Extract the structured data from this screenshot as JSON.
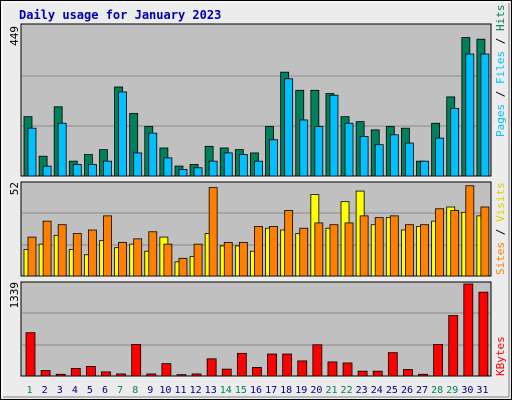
{
  "title": "Daily usage for January 2023",
  "colors": {
    "background": "#ececec",
    "plot_bg": "#c0c0c0",
    "hits": "#00805c",
    "files": "#00c0ff",
    "pages": "#00c0ff",
    "visits": "#ffff00",
    "sites": "#ff8000",
    "kbytes": "#ff0000",
    "title": "#0000b0",
    "weekend_label": "#00805c",
    "weekday_label": "#000080"
  },
  "chart_data": [
    {
      "type": "bar",
      "title": "Daily usage for January 2023",
      "categories": [
        "1",
        "2",
        "3",
        "4",
        "5",
        "6",
        "7",
        "8",
        "9",
        "10",
        "11",
        "12",
        "13",
        "14",
        "15",
        "16",
        "17",
        "18",
        "19",
        "20",
        "21",
        "22",
        "23",
        "24",
        "25",
        "26",
        "27",
        "28",
        "29",
        "30",
        "31"
      ],
      "weekend_days": [
        "1",
        "7",
        "8",
        "14",
        "15",
        "21",
        "22",
        "28",
        "29"
      ],
      "ymax_label": "449",
      "ylim": [
        0,
        449
      ],
      "axis_labels": [
        "Pages",
        "Files",
        "Hits"
      ],
      "series": [
        {
          "name": "Hits",
          "values": [
            180,
            60,
            210,
            45,
            65,
            80,
            270,
            190,
            150,
            85,
            30,
            35,
            90,
            85,
            80,
            70,
            150,
            315,
            260,
            260,
            250,
            180,
            165,
            140,
            150,
            145,
            45,
            160,
            240,
            420,
            415
          ]
        },
        {
          "name": "Files",
          "values": [
            145,
            30,
            160,
            35,
            35,
            45,
            255,
            70,
            130,
            55,
            20,
            25,
            45,
            70,
            65,
            45,
            110,
            295,
            170,
            150,
            245,
            160,
            120,
            95,
            125,
            100,
            45,
            115,
            205,
            370,
            370
          ]
        },
        {
          "name": "Pages",
          "values": [
            145,
            30,
            160,
            35,
            35,
            45,
            255,
            70,
            130,
            55,
            20,
            25,
            45,
            70,
            65,
            45,
            110,
            295,
            170,
            150,
            245,
            160,
            120,
            95,
            125,
            100,
            45,
            115,
            205,
            370,
            370
          ]
        }
      ]
    },
    {
      "type": "bar",
      "categories": [
        "1",
        "2",
        "3",
        "4",
        "5",
        "6",
        "7",
        "8",
        "9",
        "10",
        "11",
        "12",
        "13",
        "14",
        "15",
        "16",
        "17",
        "18",
        "19",
        "20",
        "21",
        "22",
        "23",
        "24",
        "25",
        "26",
        "27",
        "28",
        "29",
        "30",
        "31"
      ],
      "ymax_label": "52",
      "ylim": [
        0,
        52
      ],
      "axis_labels": [
        "Sites",
        "Visits"
      ],
      "series": [
        {
          "name": "Visits",
          "values": [
            15,
            18,
            23,
            15,
            12,
            20,
            16,
            18,
            14,
            22,
            8,
            11,
            24,
            17,
            17,
            14,
            27,
            26,
            24,
            46,
            27,
            42,
            48,
            29,
            33,
            26,
            28,
            31,
            39,
            36,
            34
          ]
        },
        {
          "name": "Sites",
          "values": [
            22,
            31,
            29,
            24,
            26,
            34,
            19,
            21,
            25,
            18,
            10,
            18,
            50,
            19,
            19,
            28,
            28,
            37,
            27,
            30,
            29,
            30,
            34,
            33,
            34,
            29,
            29,
            38,
            37,
            51,
            39
          ]
        }
      ]
    },
    {
      "type": "bar",
      "categories": [
        "1",
        "2",
        "3",
        "4",
        "5",
        "6",
        "7",
        "8",
        "9",
        "10",
        "11",
        "12",
        "13",
        "14",
        "15",
        "16",
        "17",
        "18",
        "19",
        "20",
        "21",
        "22",
        "23",
        "24",
        "25",
        "26",
        "27",
        "28",
        "29",
        "30",
        "31"
      ],
      "ymax_label": "1339",
      "ylim": [
        0,
        1339
      ],
      "axis_labels": [
        "KBytes"
      ],
      "series": [
        {
          "name": "KBytes",
          "values": [
            630,
            80,
            25,
            110,
            140,
            60,
            30,
            460,
            30,
            180,
            20,
            30,
            250,
            100,
            330,
            125,
            320,
            320,
            220,
            455,
            205,
            190,
            70,
            70,
            340,
            95,
            25,
            460,
            880,
            1339,
            1220
          ]
        }
      ]
    }
  ]
}
